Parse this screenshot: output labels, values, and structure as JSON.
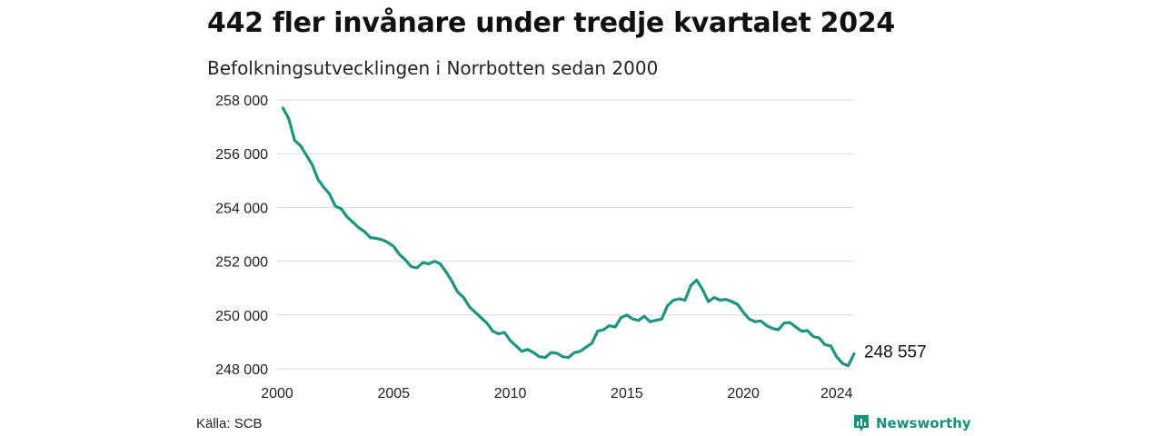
{
  "header": {
    "title": "442 fler invånare under tredje kvartalet 2024",
    "subtitle": "Befolkningsutvecklingen i Norrbotten sedan 2000"
  },
  "footer": {
    "source": "Källa: SCB",
    "brand": "Newsworthy"
  },
  "colors": {
    "line": "#1e9480",
    "grid": "#d9d9d9",
    "brand": "#15907a"
  },
  "chart_data": {
    "type": "line",
    "title": "",
    "xlabel": "",
    "ylabel": "",
    "xlim": [
      2000,
      2024.75
    ],
    "ylim": [
      248000,
      258000
    ],
    "grid": true,
    "x_ticks": [
      2000,
      2005,
      2010,
      2015,
      2020,
      2024
    ],
    "x_tick_labels": [
      "2000",
      "2005",
      "2010",
      "2015",
      "2020",
      "2024"
    ],
    "y_ticks": [
      248000,
      250000,
      252000,
      254000,
      256000,
      258000
    ],
    "y_tick_labels": [
      "248 000",
      "250 000",
      "252 000",
      "254 000",
      "256 000",
      "258 000"
    ],
    "end_label": "248 557",
    "series": [
      {
        "color": "#1e9480",
        "points": [
          [
            2000.25,
            257700
          ],
          [
            2000.5,
            257300
          ],
          [
            2000.75,
            256500
          ],
          [
            2001.0,
            256300
          ],
          [
            2001.25,
            255950
          ],
          [
            2001.5,
            255600
          ],
          [
            2001.75,
            255050
          ],
          [
            2002.0,
            254750
          ],
          [
            2002.25,
            254500
          ],
          [
            2002.5,
            254050
          ],
          [
            2002.75,
            253950
          ],
          [
            2003.0,
            253650
          ],
          [
            2003.25,
            253450
          ],
          [
            2003.5,
            253250
          ],
          [
            2003.75,
            253100
          ],
          [
            2004.0,
            252880
          ],
          [
            2004.25,
            252850
          ],
          [
            2004.5,
            252800
          ],
          [
            2004.75,
            252700
          ],
          [
            2005.0,
            252550
          ],
          [
            2005.25,
            252250
          ],
          [
            2005.5,
            252050
          ],
          [
            2005.75,
            251800
          ],
          [
            2006.0,
            251750
          ],
          [
            2006.25,
            251950
          ],
          [
            2006.5,
            251900
          ],
          [
            2006.75,
            252000
          ],
          [
            2007.0,
            251900
          ],
          [
            2007.25,
            251600
          ],
          [
            2007.5,
            251250
          ],
          [
            2007.75,
            250850
          ],
          [
            2008.0,
            250650
          ],
          [
            2008.25,
            250300
          ],
          [
            2008.5,
            250100
          ],
          [
            2008.75,
            249900
          ],
          [
            2009.0,
            249700
          ],
          [
            2009.25,
            249400
          ],
          [
            2009.5,
            249300
          ],
          [
            2009.75,
            249350
          ],
          [
            2010.0,
            249050
          ],
          [
            2010.25,
            248850
          ],
          [
            2010.5,
            248650
          ],
          [
            2010.75,
            248720
          ],
          [
            2011.0,
            248600
          ],
          [
            2011.25,
            248450
          ],
          [
            2011.5,
            248420
          ],
          [
            2011.75,
            248600
          ],
          [
            2012.0,
            248580
          ],
          [
            2012.25,
            248450
          ],
          [
            2012.5,
            248420
          ],
          [
            2012.75,
            248600
          ],
          [
            2013.0,
            248650
          ],
          [
            2013.25,
            248800
          ],
          [
            2013.5,
            248950
          ],
          [
            2013.75,
            249400
          ],
          [
            2014.0,
            249450
          ],
          [
            2014.25,
            249600
          ],
          [
            2014.5,
            249550
          ],
          [
            2014.75,
            249900
          ],
          [
            2015.0,
            250000
          ],
          [
            2015.25,
            249850
          ],
          [
            2015.5,
            249800
          ],
          [
            2015.75,
            249950
          ],
          [
            2016.0,
            249750
          ],
          [
            2016.25,
            249800
          ],
          [
            2016.5,
            249850
          ],
          [
            2016.75,
            250350
          ],
          [
            2017.0,
            250550
          ],
          [
            2017.25,
            250600
          ],
          [
            2017.5,
            250550
          ],
          [
            2017.75,
            251100
          ],
          [
            2018.0,
            251300
          ],
          [
            2018.25,
            250950
          ],
          [
            2018.5,
            250500
          ],
          [
            2018.75,
            250650
          ],
          [
            2019.0,
            250550
          ],
          [
            2019.25,
            250580
          ],
          [
            2019.5,
            250500
          ],
          [
            2019.75,
            250400
          ],
          [
            2020.0,
            250100
          ],
          [
            2020.25,
            249850
          ],
          [
            2020.5,
            249750
          ],
          [
            2020.75,
            249780
          ],
          [
            2021.0,
            249600
          ],
          [
            2021.25,
            249500
          ],
          [
            2021.5,
            249450
          ],
          [
            2021.75,
            249700
          ],
          [
            2022.0,
            249720
          ],
          [
            2022.25,
            249550
          ],
          [
            2022.5,
            249400
          ],
          [
            2022.75,
            249420
          ],
          [
            2023.0,
            249200
          ],
          [
            2023.25,
            249150
          ],
          [
            2023.5,
            248900
          ],
          [
            2023.75,
            248850
          ],
          [
            2024.0,
            248450
          ],
          [
            2024.25,
            248200
          ],
          [
            2024.5,
            248115
          ],
          [
            2024.75,
            248557
          ]
        ]
      }
    ]
  }
}
